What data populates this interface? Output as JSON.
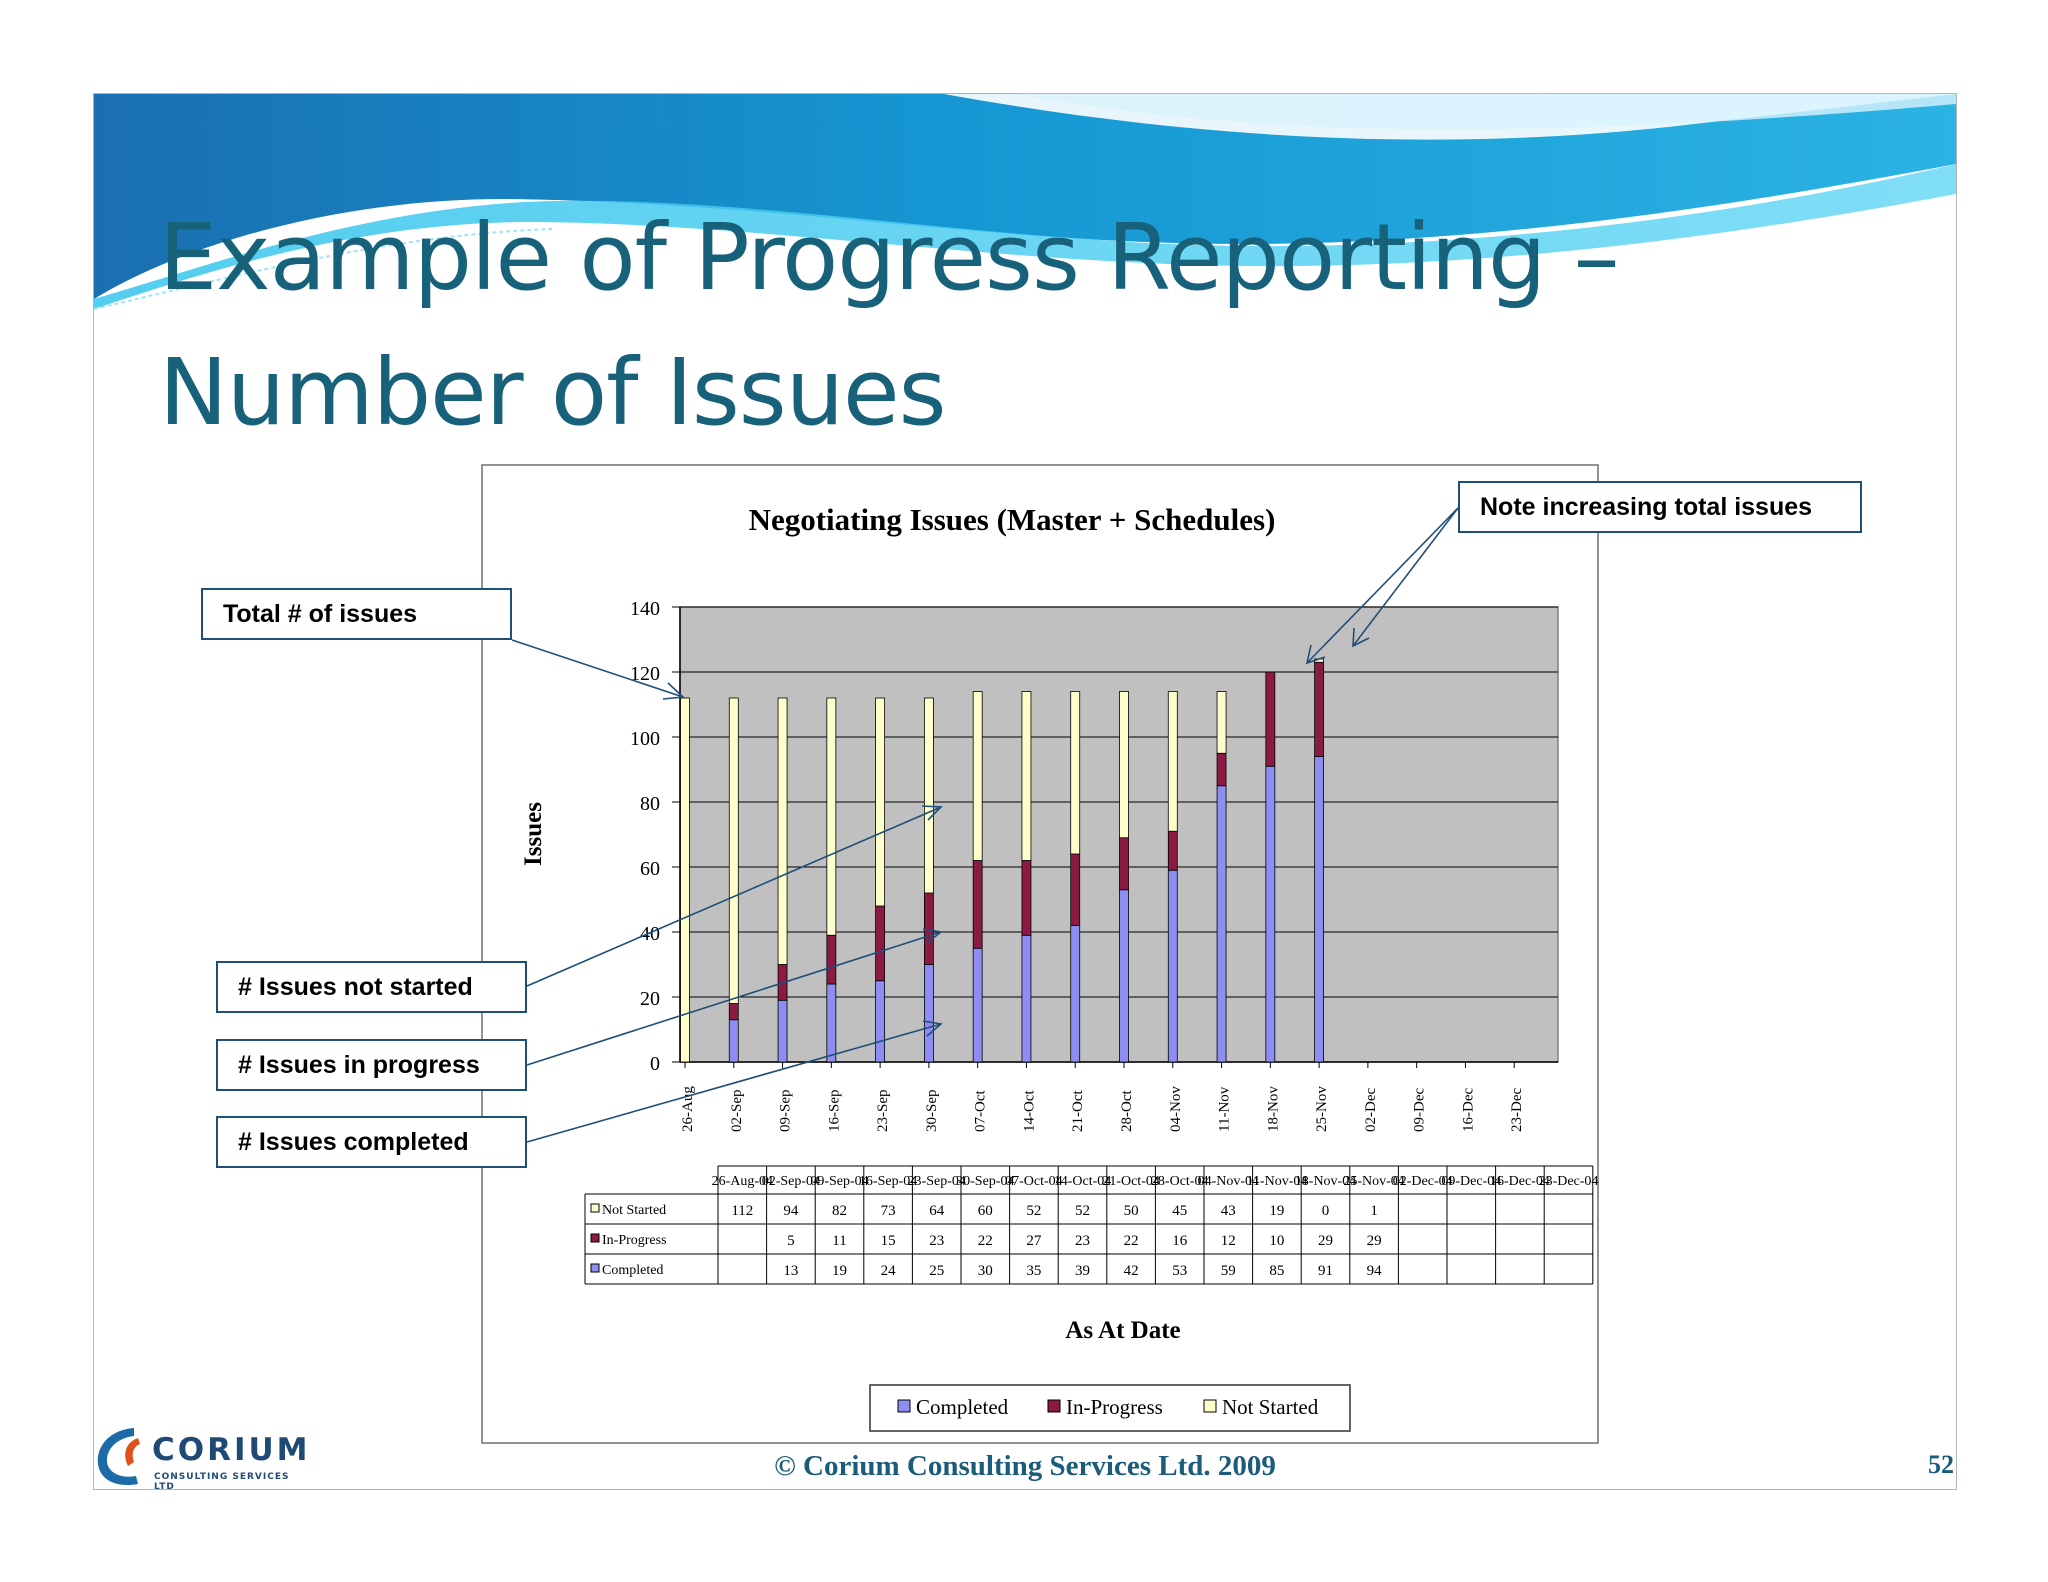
{
  "slide": {
    "title_line1": "Example of Progress Reporting –",
    "title_line2": "Number of Issues",
    "footer": "© Corium Consulting Services Ltd. 2009",
    "page_number": "52",
    "logo_word": "CORIUM",
    "logo_sub": "CONSULTING SERVICES LTD"
  },
  "callouts": {
    "total": "Total # of issues",
    "note": "Note increasing total issues",
    "not_started": "# Issues not started",
    "in_progress": "# Issues in progress",
    "completed": "# Issues completed"
  },
  "colors": {
    "completed": "#8d8df2",
    "in_progress": "#8b1a45",
    "not_started": "#ffffcc",
    "plot_bg": "#c0c0c0",
    "title": "#17627a",
    "callout_border": "#1f4e79"
  },
  "chart_data": {
    "type": "bar",
    "stacked": true,
    "title": "Negotiating Issues (Master + Schedules)",
    "xlabel": "As At Date",
    "ylabel": "Issues",
    "ylim": [
      0,
      140
    ],
    "yticks": [
      0,
      20,
      40,
      60,
      80,
      100,
      120,
      140
    ],
    "grid": true,
    "legend_position": "bottom",
    "categories": [
      "26-Aug",
      "02-Sep",
      "09-Sep",
      "16-Sep",
      "23-Sep",
      "30-Sep",
      "07-Oct",
      "14-Oct",
      "21-Oct",
      "28-Oct",
      "04-Nov",
      "11-Nov",
      "18-Nov",
      "25-Nov",
      "02-Dec",
      "09-Dec",
      "16-Dec",
      "23-Dec"
    ],
    "table_header": [
      "26-Aug-04",
      "02-Sep-04",
      "09-Sep-04",
      "16-Sep-04",
      "23-Sep-04",
      "30-Sep-04",
      "07-Oct-04",
      "14-Oct-04",
      "21-Oct-04",
      "28-Oct-04",
      "04-Nov-04",
      "11-Nov-04",
      "18-Nov-04",
      "25-Nov-04",
      "02-Dec-04",
      "09-Dec-04",
      "16-Dec-04",
      "23-Dec-04"
    ],
    "series": [
      {
        "name": "Completed",
        "values": [
          null,
          13,
          19,
          24,
          25,
          30,
          35,
          39,
          42,
          53,
          59,
          85,
          91,
          94,
          null,
          null,
          null,
          null
        ]
      },
      {
        "name": "In-Progress",
        "values": [
          null,
          5,
          11,
          15,
          23,
          22,
          27,
          23,
          22,
          16,
          12,
          10,
          29,
          29,
          null,
          null,
          null,
          null
        ]
      },
      {
        "name": "Not Started",
        "values": [
          112,
          94,
          82,
          73,
          64,
          60,
          52,
          52,
          50,
          45,
          43,
          19,
          0,
          1,
          null,
          null,
          null,
          null
        ]
      }
    ],
    "table_rows_order": [
      "Not Started",
      "In-Progress",
      "Completed"
    ],
    "table_row_labels": [
      "Not Started",
      "In-Progress",
      "Completed"
    ]
  }
}
